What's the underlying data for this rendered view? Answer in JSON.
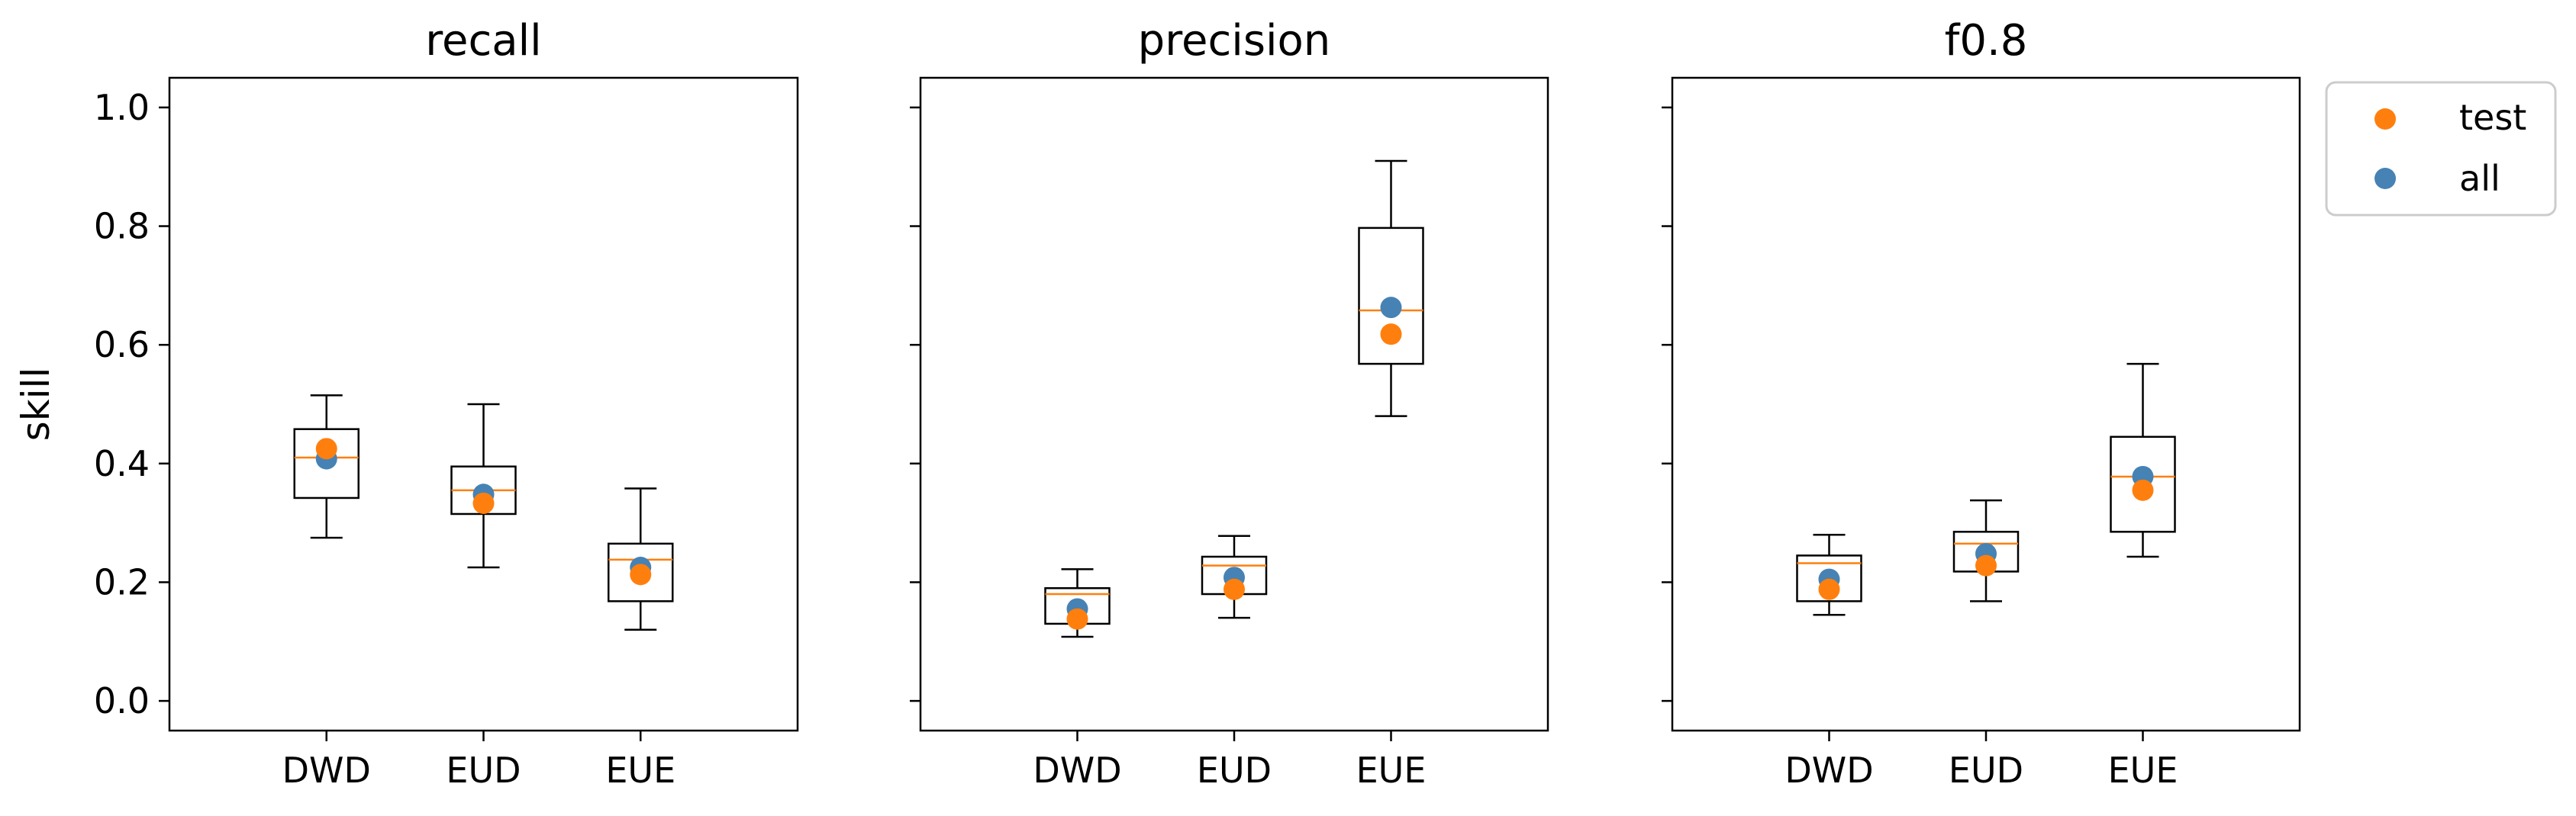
{
  "chart_data": [
    {
      "type": "box",
      "title": "recall",
      "ylabel": "skill",
      "xlabel": "",
      "ylim": [
        -0.05,
        1.05
      ],
      "yticks": [
        "0.0",
        "0.2",
        "0.4",
        "0.6",
        "0.8",
        "1.0"
      ],
      "categories": [
        "DWD",
        "EUD",
        "EUE"
      ],
      "boxes": [
        {
          "whisker_low": 0.275,
          "q1": 0.342,
          "median": 0.41,
          "q3": 0.458,
          "whisker_high": 0.515
        },
        {
          "whisker_low": 0.225,
          "q1": 0.315,
          "median": 0.355,
          "q3": 0.395,
          "whisker_high": 0.5
        },
        {
          "whisker_low": 0.12,
          "q1": 0.168,
          "median": 0.238,
          "q3": 0.265,
          "whisker_high": 0.358
        }
      ],
      "series": [
        {
          "name": "all",
          "values": [
            0.408,
            0.348,
            0.225
          ]
        },
        {
          "name": "test",
          "values": [
            0.425,
            0.333,
            0.213
          ]
        }
      ]
    },
    {
      "type": "box",
      "title": "precision",
      "xlabel": "",
      "ylim": [
        -0.05,
        1.05
      ],
      "categories": [
        "DWD",
        "EUD",
        "EUE"
      ],
      "boxes": [
        {
          "whisker_low": 0.108,
          "q1": 0.13,
          "median": 0.18,
          "q3": 0.19,
          "whisker_high": 0.222
        },
        {
          "whisker_low": 0.14,
          "q1": 0.18,
          "median": 0.228,
          "q3": 0.243,
          "whisker_high": 0.278
        },
        {
          "whisker_low": 0.48,
          "q1": 0.568,
          "median": 0.658,
          "q3": 0.797,
          "whisker_high": 0.91
        }
      ],
      "series": [
        {
          "name": "all",
          "values": [
            0.155,
            0.208,
            0.663
          ]
        },
        {
          "name": "test",
          "values": [
            0.138,
            0.188,
            0.618
          ]
        }
      ]
    },
    {
      "type": "box",
      "title": "f0.8",
      "xlabel": "",
      "ylim": [
        -0.05,
        1.05
      ],
      "categories": [
        "DWD",
        "EUD",
        "EUE"
      ],
      "boxes": [
        {
          "whisker_low": 0.145,
          "q1": 0.168,
          "median": 0.232,
          "q3": 0.245,
          "whisker_high": 0.28
        },
        {
          "whisker_low": 0.168,
          "q1": 0.218,
          "median": 0.265,
          "q3": 0.285,
          "whisker_high": 0.338
        },
        {
          "whisker_low": 0.243,
          "q1": 0.285,
          "median": 0.378,
          "q3": 0.445,
          "whisker_high": 0.568
        }
      ],
      "series": [
        {
          "name": "all",
          "values": [
            0.205,
            0.248,
            0.378
          ]
        },
        {
          "name": "test",
          "values": [
            0.188,
            0.228,
            0.355
          ]
        }
      ]
    }
  ],
  "legend": {
    "position": "outside-right-top",
    "entries": [
      {
        "label": "test",
        "color": "#ff7f0e"
      },
      {
        "label": "all",
        "color": "#4682b4"
      }
    ]
  },
  "colors": {
    "test": "#ff7f0e",
    "all": "#4682b4",
    "median": "#ff7f0e",
    "box": "#000000"
  }
}
